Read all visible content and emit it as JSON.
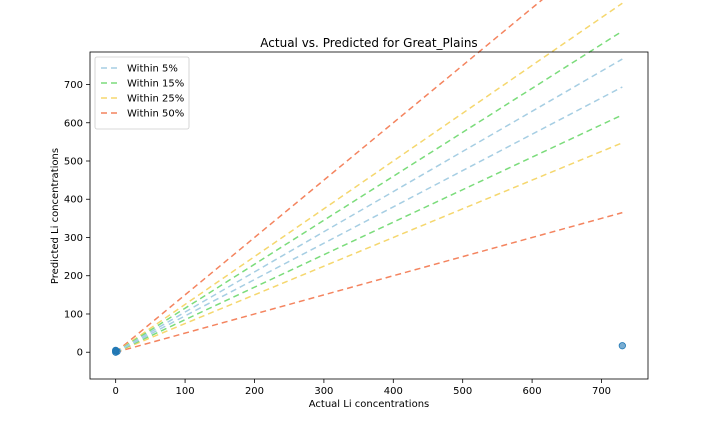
{
  "chart_data": {
    "type": "scatter",
    "title": "Actual vs. Predicted for Great_Plains",
    "xlabel": "Actual Li concentrations",
    "ylabel": "Predicted Li concentrations",
    "xlim": [
      -37,
      767
    ],
    "ylim": [
      -70,
      785
    ],
    "xticks": [
      0,
      100,
      200,
      300,
      400,
      500,
      600,
      700
    ],
    "yticks": [
      0,
      100,
      200,
      300,
      400,
      500,
      600,
      700
    ],
    "legend_position": "upper left",
    "bands": [
      {
        "name": "Within 5%",
        "tolerance": 5,
        "color": "#a6cee3"
      },
      {
        "name": "Within 15%",
        "tolerance": 15,
        "color": "#7bdc7b"
      },
      {
        "name": "Within 25%",
        "tolerance": 25,
        "color": "#f5d76e"
      },
      {
        "name": "Within 50%",
        "tolerance": 50,
        "color": "#f4845f"
      }
    ],
    "band_x_range": [
      0,
      730
    ],
    "points": {
      "color": "#1f77b4",
      "x": [
        0,
        0,
        0,
        2,
        730
      ],
      "y": [
        0,
        3,
        5,
        2,
        17
      ]
    }
  }
}
